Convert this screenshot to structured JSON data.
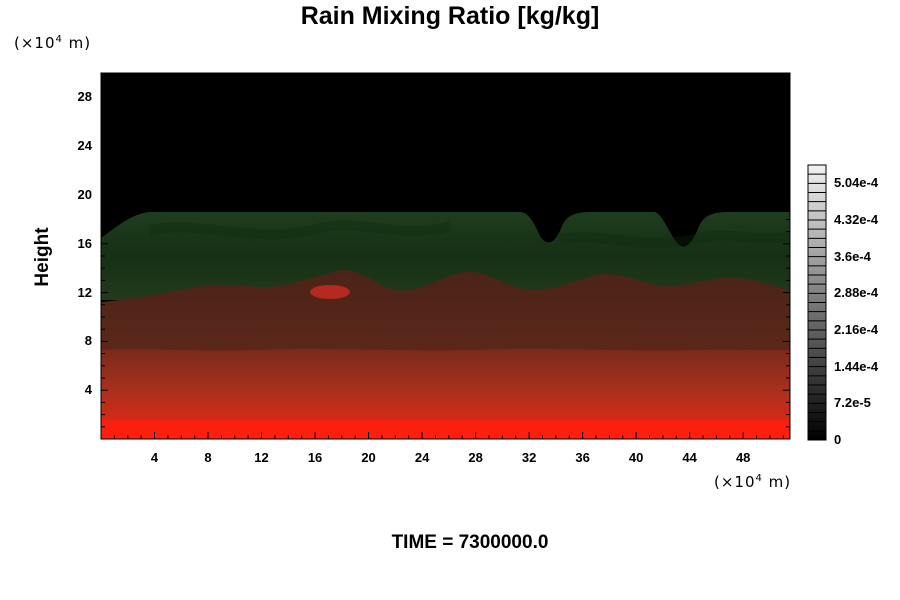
{
  "chart_data": {
    "type": "heatmap",
    "title": "Rain Mixing Ratio [kg/kg]",
    "ylabel": "Height",
    "xlabel": "",
    "x_unit_prefix": "(×10",
    "x_unit_exp": "4",
    "x_unit_suffix": " m)",
    "y_unit_prefix": "(×10",
    "y_unit_exp": "4",
    "y_unit_suffix": " m)",
    "xlim": [
      0,
      51.5
    ],
    "ylim": [
      0,
      30
    ],
    "x_ticks": [
      4,
      8,
      12,
      16,
      20,
      24,
      28,
      32,
      36,
      40,
      44,
      48
    ],
    "x_tick_labels": [
      "4",
      "8",
      "12",
      "16",
      "20",
      "24",
      "28",
      "32",
      "36",
      "40",
      "44",
      "48"
    ],
    "y_ticks": [
      4,
      8,
      12,
      16,
      20,
      24,
      28
    ],
    "y_tick_labels": [
      "4",
      "8",
      "12",
      "16",
      "20",
      "24",
      "28"
    ],
    "colorbar": {
      "min": 0,
      "max": 0.00054,
      "ticks": [
        0,
        7.2e-05,
        0.000144,
        0.000216,
        0.000288,
        0.00036,
        0.000432,
        0.000504
      ],
      "tick_labels": [
        "0",
        "7.2e-5",
        "1.44e-4",
        "2.16e-4",
        "2.88e-4",
        "3.6e-4",
        "4.32e-4",
        "5.04e-4"
      ]
    },
    "layers": [
      {
        "label": "upper layer (dark green)",
        "from_height": 11.5,
        "to_height": 18.5
      },
      {
        "label": "mid layer (dark red-brown)",
        "from_height": 6,
        "to_height": 11.5
      },
      {
        "label": "lower layer (red)",
        "from_height": 0,
        "to_height": 6
      }
    ],
    "time_label": "TIME = 7300000.0"
  }
}
